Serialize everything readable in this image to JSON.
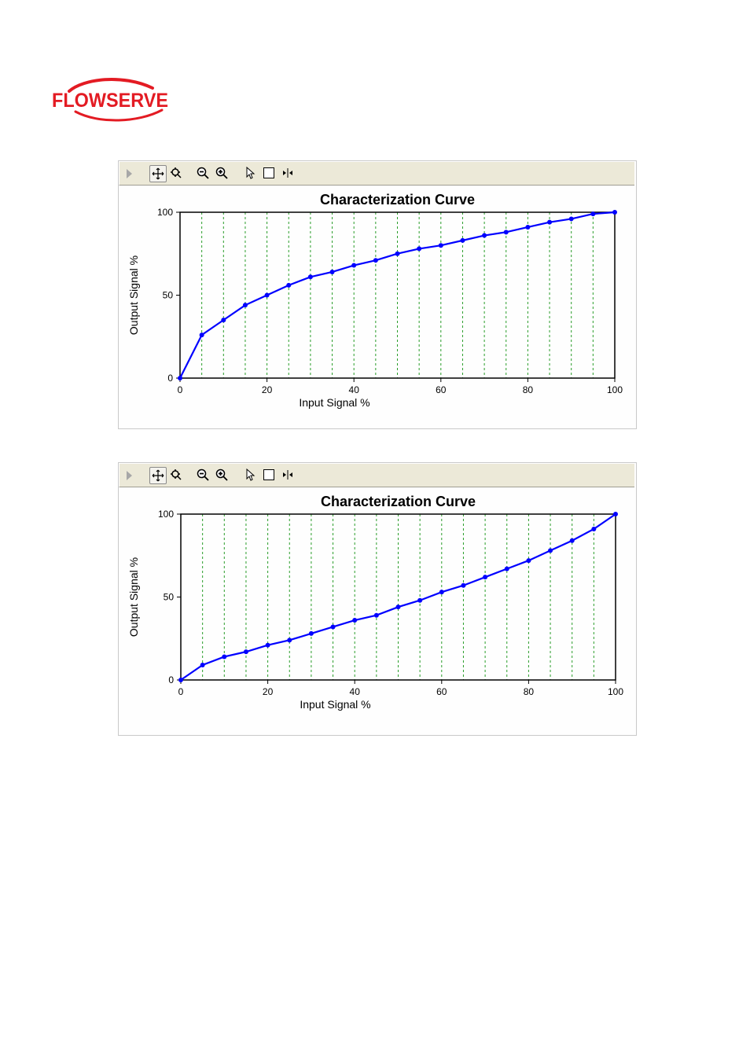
{
  "logo": {
    "text": "FLOWSERVE",
    "color": "#e31b23"
  },
  "toolbar": {
    "icons": [
      "play-arrow-icon",
      "pan-icon",
      "zoom-icon",
      "zoom-out-icon",
      "zoom-in-icon",
      "pointer-icon",
      "select-box-icon",
      "fit-icon"
    ]
  },
  "colors": {
    "series": "#0000ff",
    "grid": "#2a9d2a",
    "axis": "#000000"
  },
  "chart_data": [
    {
      "type": "line",
      "title": "Characterization Curve",
      "xlabel": "Input Signal %",
      "ylabel": "Output Signal %",
      "xlim": [
        0,
        100
      ],
      "ylim": [
        0,
        100
      ],
      "xticks": [
        "0",
        "20",
        "40",
        "60",
        "80",
        "100"
      ],
      "yticks": [
        "0",
        "50",
        "100"
      ],
      "grid_x": [
        0,
        5,
        10,
        15,
        20,
        25,
        30,
        35,
        40,
        45,
        50,
        55,
        60,
        65,
        70,
        75,
        80,
        85,
        90,
        95,
        100
      ],
      "x": [
        0,
        5,
        10,
        15,
        20,
        25,
        30,
        35,
        40,
        45,
        50,
        55,
        60,
        65,
        70,
        75,
        80,
        85,
        90,
        95,
        100
      ],
      "y": [
        0,
        26,
        35,
        44,
        50,
        56,
        61,
        64,
        68,
        71,
        75,
        78,
        80,
        83,
        86,
        88,
        91,
        94,
        96,
        99,
        100
      ]
    },
    {
      "type": "line",
      "title": "Characterization Curve",
      "xlabel": "Input Signal %",
      "ylabel": "Output Signal %",
      "xlim": [
        0,
        100
      ],
      "ylim": [
        0,
        100
      ],
      "xticks": [
        "0",
        "20",
        "40",
        "60",
        "80",
        "100"
      ],
      "yticks": [
        "0",
        "50",
        "100"
      ],
      "grid_x": [
        0,
        5,
        10,
        15,
        20,
        25,
        30,
        35,
        40,
        45,
        50,
        55,
        60,
        65,
        70,
        75,
        80,
        85,
        90,
        95,
        100
      ],
      "x": [
        0,
        5,
        10,
        15,
        20,
        25,
        30,
        35,
        40,
        45,
        50,
        55,
        60,
        65,
        70,
        75,
        80,
        85,
        90,
        95,
        100
      ],
      "y": [
        0,
        9,
        14,
        17,
        21,
        24,
        28,
        32,
        36,
        39,
        44,
        48,
        53,
        57,
        62,
        67,
        72,
        78,
        84,
        91,
        100
      ]
    }
  ]
}
